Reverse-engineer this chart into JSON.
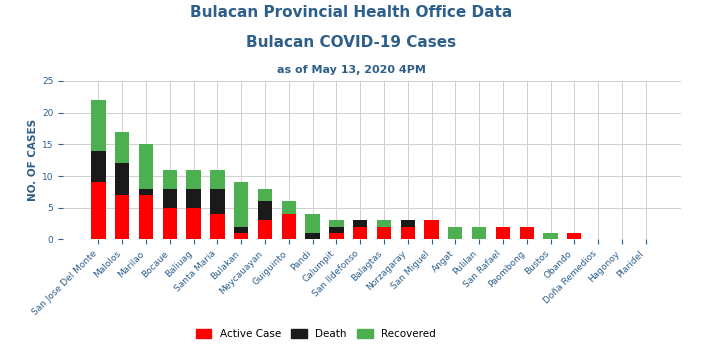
{
  "title_line1": "Bulacan Provincial Health Office Data",
  "title_line2": "Bulacan COVID-19 Cases",
  "subtitle": "as of May 13, 2020 4PM",
  "ylabel": "NO. OF CASES",
  "categories": [
    "San Jose Del Monte",
    "Malolos",
    "Marilao",
    "Bocaue",
    "Baliuag",
    "Santa Maria",
    "Bulakan",
    "Meycauayan",
    "Guiguinto",
    "Pandi",
    "Calumpit",
    "San Ildefonso",
    "Balagtas",
    "Norzagaray",
    "San Miguel",
    "Angat",
    "Pulilan",
    "San Rafael",
    "Paombong",
    "Bustos",
    "Obando",
    "Doña Remedios",
    "Hagonoy",
    "Plaridel"
  ],
  "active": [
    9,
    7,
    7,
    5,
    5,
    4,
    1,
    3,
    4,
    0,
    1,
    2,
    2,
    2,
    3,
    0,
    0,
    2,
    2,
    0,
    1,
    0,
    0,
    0
  ],
  "death": [
    5,
    5,
    1,
    3,
    3,
    4,
    1,
    3,
    0,
    1,
    1,
    1,
    0,
    1,
    0,
    0,
    0,
    0,
    0,
    0,
    0,
    0,
    0,
    0
  ],
  "recovered": [
    8,
    5,
    7,
    3,
    3,
    3,
    7,
    2,
    2,
    3,
    1,
    0,
    1,
    0,
    0,
    2,
    2,
    0,
    0,
    1,
    0,
    0,
    0,
    0
  ],
  "active_color": "#ff0000",
  "death_color": "#1a1a1a",
  "recovered_color": "#4caf50",
  "title_color": "#2e5f8a",
  "bg_color": "#ffffff",
  "grid_color": "#d0d0d0",
  "ylim": [
    0,
    25
  ],
  "yticks": [
    0,
    5,
    10,
    15,
    20,
    25
  ],
  "title1_fontsize": 11,
  "title2_fontsize": 11,
  "subtitle_fontsize": 8,
  "legend_fontsize": 7.5,
  "tick_fontsize": 6.5,
  "ylabel_fontsize": 7.5,
  "bar_width": 0.6
}
